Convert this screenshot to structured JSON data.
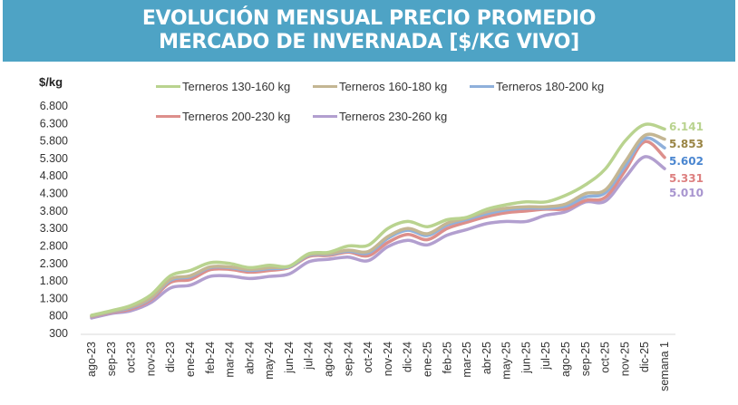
{
  "header": {
    "line1": "EVOLUCIÓN MENSUAL PRECIO PROMEDIO",
    "line2": "MERCADO DE INVERNADA [$/KG VIVO]"
  },
  "chart_data": {
    "type": "line",
    "title": "EVOLUCIÓN MENSUAL PRECIO PROMEDIO MERCADO DE INVERNADA [$/KG VIVO]",
    "ylabel": "$/kg",
    "xlabel": "",
    "ylim": [
      300,
      6800
    ],
    "yticks": [
      "6.800",
      "6.300",
      "5.800",
      "5.300",
      "4.800",
      "4.300",
      "3.800",
      "3.300",
      "2.800",
      "2.300",
      "1.800",
      "1.300",
      "800",
      "300"
    ],
    "ytick_values": [
      6800,
      6300,
      5800,
      5300,
      4800,
      4300,
      3800,
      3300,
      2800,
      2300,
      1800,
      1300,
      800,
      300
    ],
    "grid": false,
    "legend_position": "top",
    "categories": [
      "ago-23",
      "sep-23",
      "oct-23",
      "nov-23",
      "dic-23",
      "ene-24",
      "feb-24",
      "mar-24",
      "abr-24",
      "may-24",
      "jun-24",
      "jul-24",
      "ago-24",
      "sep-24",
      "oct-24",
      "nov-24",
      "dic-24",
      "ene-25",
      "feb-25",
      "mar-25",
      "abr-25",
      "may-25",
      "jun-25",
      "jul-25",
      "ago-25",
      "sep-25",
      "oct-25",
      "nov-25",
      "dic-25",
      "semana 1"
    ],
    "series": [
      {
        "name": "Terneros 130-160 kg",
        "color": "#b9d38f",
        "end_label": "6.141",
        "label_color": "#b9d38f",
        "values": [
          820,
          950,
          1100,
          1400,
          1950,
          2100,
          2320,
          2300,
          2180,
          2250,
          2220,
          2580,
          2620,
          2800,
          2820,
          3300,
          3500,
          3350,
          3550,
          3620,
          3850,
          3980,
          4060,
          4060,
          4250,
          4550,
          5000,
          5800,
          6270,
          6141
        ]
      },
      {
        "name": "Terneros 160-180 kg",
        "color": "#c4b693",
        "end_label": "5.853",
        "label_color": "#9a8545",
        "values": [
          800,
          930,
          1060,
          1320,
          1850,
          1950,
          2200,
          2200,
          2130,
          2180,
          2220,
          2550,
          2580,
          2680,
          2640,
          3070,
          3300,
          3150,
          3450,
          3600,
          3780,
          3880,
          3920,
          3920,
          4000,
          4300,
          4400,
          5200,
          5960,
          5853
        ]
      },
      {
        "name": "Terneros 180-200 kg",
        "color": "#8fb0db",
        "end_label": "5.602",
        "label_color": "#4a86d0",
        "values": [
          790,
          920,
          1040,
          1300,
          1820,
          1920,
          2180,
          2180,
          2100,
          2150,
          2200,
          2530,
          2560,
          2650,
          2600,
          3020,
          3250,
          3100,
          3400,
          3560,
          3720,
          3830,
          3880,
          3880,
          3940,
          4200,
          4320,
          5080,
          5870,
          5602
        ]
      },
      {
        "name": "Terneros 200-230 kg",
        "color": "#dd8f8b",
        "end_label": "5.331",
        "label_color": "#dd8080",
        "values": [
          780,
          900,
          1000,
          1260,
          1760,
          1840,
          2120,
          2130,
          2050,
          2100,
          2180,
          2500,
          2530,
          2620,
          2520,
          2900,
          3130,
          2980,
          3300,
          3480,
          3640,
          3750,
          3800,
          3850,
          3860,
          4100,
          4190,
          4950,
          5780,
          5331
        ]
      },
      {
        "name": "Terneros 230-260 kg",
        "color": "#b29fcf",
        "end_label": "5.010",
        "label_color": "#a895cf",
        "values": [
          740,
          870,
          950,
          1180,
          1600,
          1680,
          1930,
          1940,
          1870,
          1930,
          2000,
          2350,
          2420,
          2480,
          2380,
          2780,
          2960,
          2830,
          3110,
          3270,
          3440,
          3500,
          3500,
          3680,
          3780,
          4060,
          4080,
          4750,
          5350,
          5010
        ]
      }
    ]
  }
}
